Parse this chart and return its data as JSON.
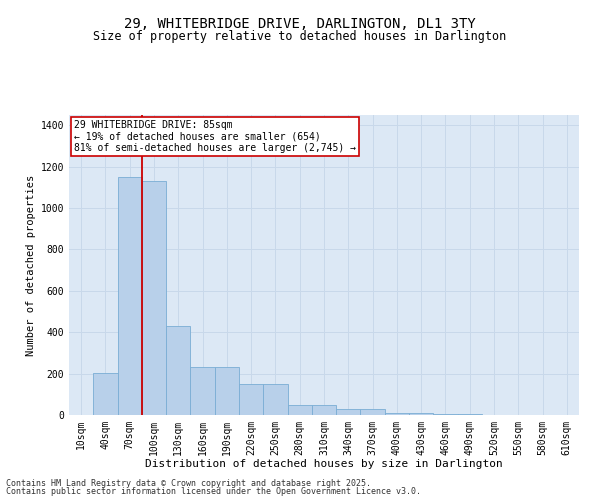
{
  "title": "29, WHITEBRIDGE DRIVE, DARLINGTON, DL1 3TY",
  "subtitle": "Size of property relative to detached houses in Darlington",
  "xlabel": "Distribution of detached houses by size in Darlington",
  "ylabel": "Number of detached properties",
  "categories": [
    "10sqm",
    "40sqm",
    "70sqm",
    "100sqm",
    "130sqm",
    "160sqm",
    "190sqm",
    "220sqm",
    "250sqm",
    "280sqm",
    "310sqm",
    "340sqm",
    "370sqm",
    "400sqm",
    "430sqm",
    "460sqm",
    "490sqm",
    "520sqm",
    "550sqm",
    "580sqm",
    "610sqm"
  ],
  "values": [
    0,
    205,
    1150,
    1130,
    430,
    230,
    230,
    150,
    150,
    50,
    50,
    30,
    30,
    10,
    10,
    5,
    3,
    0,
    0,
    0,
    0
  ],
  "bar_color": "#b8d0ea",
  "bar_edge_color": "#7aadd4",
  "vline_color": "#cc0000",
  "vline_x_index": 2.5,
  "annotation_text": "29 WHITEBRIDGE DRIVE: 85sqm\n← 19% of detached houses are smaller (654)\n81% of semi-detached houses are larger (2,745) →",
  "annotation_box_facecolor": "#ffffff",
  "annotation_box_edgecolor": "#cc0000",
  "ylim": [
    0,
    1450
  ],
  "yticks": [
    0,
    200,
    400,
    600,
    800,
    1000,
    1200,
    1400
  ],
  "grid_color": "#c8d8ea",
  "bg_color": "#dce8f5",
  "footer_line1": "Contains HM Land Registry data © Crown copyright and database right 2025.",
  "footer_line2": "Contains public sector information licensed under the Open Government Licence v3.0.",
  "title_fontsize": 10,
  "subtitle_fontsize": 8.5,
  "xlabel_fontsize": 8,
  "ylabel_fontsize": 7.5,
  "tick_fontsize": 7,
  "annotation_fontsize": 7,
  "footer_fontsize": 6
}
